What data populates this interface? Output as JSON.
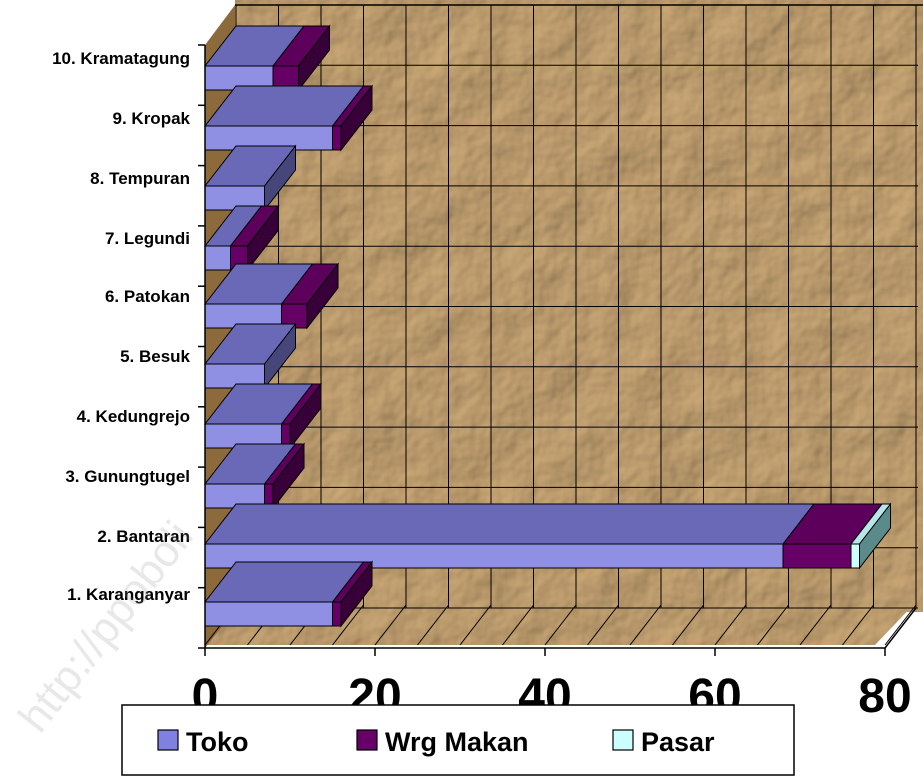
{
  "chart_data": {
    "type": "bar",
    "orientation": "horizontal",
    "stacked": true,
    "three_d": true,
    "categories": [
      "1.  Karanganyar",
      "2.  Bantaran",
      "3.  Gunungtugel",
      "4.  Kedungrejo",
      "5.  Besuk",
      "6.  Patokan",
      "7.  Legundi",
      "8.  Tempuran",
      "9.  Kropak",
      "10. Kramatagung"
    ],
    "series": [
      {
        "name": "Toko",
        "color": "#8080e0",
        "values": [
          15,
          68,
          7,
          9,
          7,
          9,
          3,
          7,
          15,
          8
        ]
      },
      {
        "name": "Wrg Makan",
        "color": "#660066",
        "values": [
          1,
          8,
          1,
          1,
          0,
          3,
          2,
          0,
          1,
          3
        ]
      },
      {
        "name": "Pasar",
        "color": "#ccffff",
        "values": [
          0,
          1,
          0,
          0,
          0,
          0,
          0,
          0,
          0,
          0
        ]
      }
    ],
    "xticks": [
      "0",
      "20",
      "40",
      "60",
      "80"
    ],
    "xlim": [
      0,
      80
    ],
    "grid": true,
    "legend": "bottom"
  },
  "watermark": "http://ppoboli"
}
